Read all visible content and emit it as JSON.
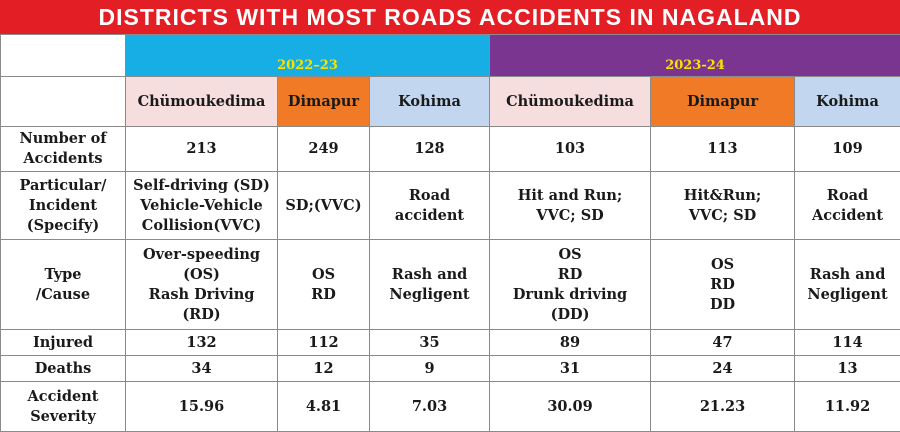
{
  "title": "DISTRICTS WITH MOST ROADS ACCIDENTS IN NAGALAND",
  "colors": {
    "title_bg": "#e31e24",
    "year_2022_bg": "#17aee5",
    "year_2023_bg": "#7a3591",
    "year_text": "#f5e400",
    "chumoukedima_bg": "#f6dede",
    "dimapur_bg": "#f07a26",
    "kohima_bg": "#c3d6ef"
  },
  "years": [
    "2022–23",
    "2023-24"
  ],
  "districts": [
    "Chümoukedima",
    "Dimapur",
    "Kohima",
    "Chümoukedima",
    "Dimapur",
    "Kohima"
  ],
  "rows": [
    {
      "label": "Number of\nAccidents",
      "values": [
        "213",
        "249",
        "128",
        "103",
        "113",
        "109"
      ]
    },
    {
      "label": "Particular/\nIncident\n(Specify)",
      "values": [
        "Self-driving (SD)\nVehicle-Vehicle\nCollision(VVC)",
        "SD;(VVC)",
        "Road\naccident",
        "Hit and Run;\nVVC; SD",
        "Hit&Run;\nVVC; SD",
        "Road\nAccident"
      ]
    },
    {
      "label": "Type\n/Cause",
      "values": [
        "Over-speeding\n(OS)\nRash Driving\n(RD)",
        "OS\nRD",
        "Rash and\nNegligent",
        "OS\nRD\nDrunk driving\n(DD)",
        "OS\nRD\nDD",
        "Rash and\nNegligent"
      ]
    },
    {
      "label": "Injured",
      "values": [
        "132",
        "112",
        "35",
        "89",
        "47",
        "114"
      ]
    },
    {
      "label": "Deaths",
      "values": [
        "34",
        "12",
        "9",
        "31",
        "24",
        "13"
      ]
    },
    {
      "label": "Accident\nSeverity",
      "values": [
        "15.96",
        "4.81",
        "7.03",
        "30.09",
        "21.23",
        "11.92"
      ]
    }
  ]
}
